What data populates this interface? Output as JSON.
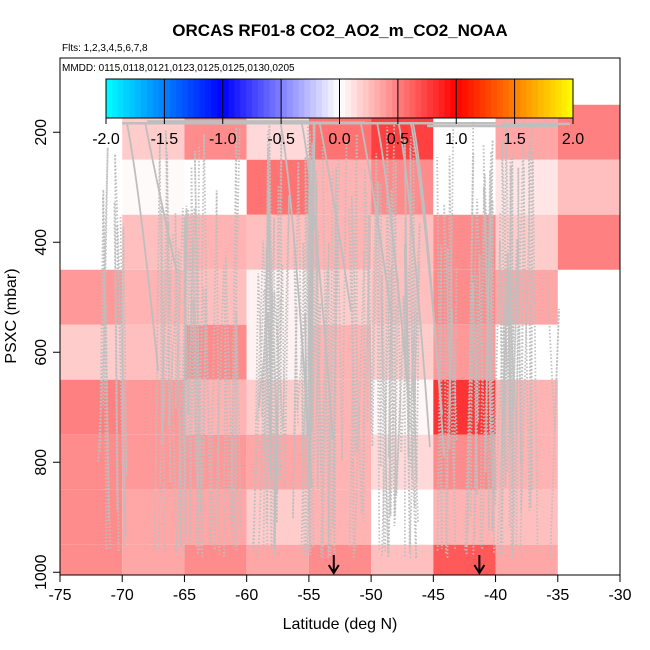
{
  "chart_data": {
    "type": "heatmap",
    "title": "ORCAS RF01-8 CO2_AO2_m_CO2_NOAA",
    "flights_label": "Flts: 1,2,3,4,5,6,7,8",
    "dates_label": "MMDD: 0115,0118,0121,0123,0125,0125,0130,0205",
    "xlabel": "Latitude (deg N)",
    "ylabel": "PSXC (mbar)",
    "xlim": [
      -75,
      -30
    ],
    "ylim": [
      1005,
      65
    ],
    "x_ticks": [
      -75,
      -70,
      -65,
      -60,
      -55,
      -50,
      -45,
      -40,
      -35,
      -30
    ],
    "x_tick_labels": [
      "-75",
      "-70",
      "-65",
      "-60",
      "-55",
      "-50",
      "-45",
      "-40",
      "-35",
      "-30"
    ],
    "y_ticks": [
      200,
      400,
      600,
      800,
      1000
    ],
    "y_tick_labels": [
      "200",
      "400",
      "600",
      "800",
      "1000"
    ],
    "colorbar": {
      "min": -2.0,
      "max": 2.0,
      "ticks": [
        -2.0,
        -1.5,
        -1.0,
        -0.5,
        0.0,
        0.5,
        1.0,
        1.5,
        2.0
      ],
      "tick_labels": [
        "-2.0",
        "-1.5",
        "-1.0",
        "-0.5",
        "0.0",
        "0.5",
        "1.0",
        "1.5",
        "2.0"
      ],
      "colors": [
        "#00ffff",
        "#0000ff",
        "#ffffff",
        "#ff0000",
        "#ffff00"
      ]
    },
    "lat_bins": [
      -75,
      -70,
      -65,
      -60,
      -55,
      -50,
      -45,
      -40,
      -35,
      -30
    ],
    "pres_bins": [
      150,
      250,
      350,
      450,
      550,
      650,
      750,
      850,
      950,
      1050
    ],
    "values": [
      [
        null,
        0.2,
        0.45,
        0.15,
        0.55,
        0.75,
        0.0,
        0.35,
        0.5
      ],
      [
        null,
        0.02,
        0.0,
        0.55,
        0.3,
        0.45,
        0.0,
        0.1,
        0.25
      ],
      [
        null,
        0.25,
        0.3,
        0.25,
        0.3,
        0.25,
        0.45,
        0.2,
        0.5
      ],
      [
        0.4,
        0.3,
        0.25,
        0.05,
        0.2,
        0.25,
        0.45,
        0.35,
        null
      ],
      [
        0.2,
        0.25,
        0.45,
        0.05,
        0.3,
        0.2,
        0.4,
        0.0,
        null
      ],
      [
        0.5,
        0.4,
        0.3,
        0.2,
        0.3,
        0.03,
        0.8,
        0.3,
        null
      ],
      [
        0.45,
        0.4,
        0.4,
        0.35,
        0.3,
        0.15,
        0.45,
        0.3,
        null
      ],
      [
        0.45,
        0.35,
        0.35,
        0.2,
        0.3,
        0.0,
        0.3,
        0.25,
        null
      ],
      [
        0.45,
        0.35,
        0.45,
        0.35,
        0.45,
        0.25,
        0.65,
        0.35,
        null
      ]
    ],
    "arrow_markers": [
      -53,
      -41.3
    ],
    "flight_track_color": "#bebebe"
  }
}
